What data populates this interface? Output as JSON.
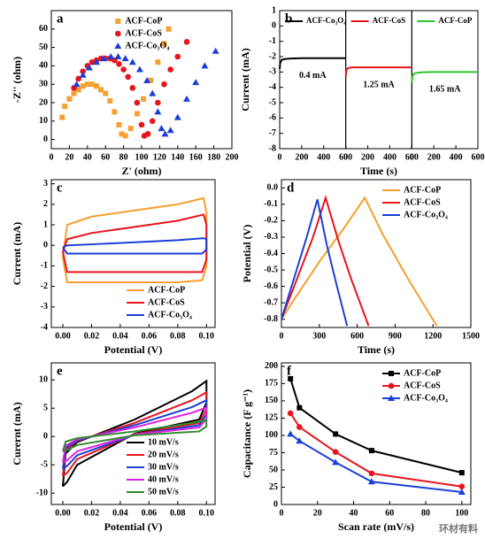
{
  "chart_data": [
    {
      "type": "scatter",
      "label": "a",
      "xlabel": "Z' (ohm)",
      "ylabel": "-Z'' (ohm)",
      "xlim": [
        0,
        200
      ],
      "ylim": [
        -5,
        70
      ],
      "xticks": [
        0,
        20,
        40,
        60,
        80,
        100,
        120,
        140,
        160,
        180,
        200
      ],
      "yticks": [
        0,
        10,
        20,
        30,
        40,
        50,
        60
      ],
      "legend": "upper center",
      "series": [
        {
          "name": "ACF-CoP",
          "color": "#f5a030",
          "marker": "square",
          "x": [
            12,
            15,
            20,
            25,
            30,
            35,
            40,
            45,
            50,
            55,
            60,
            65,
            70,
            75,
            78,
            82,
            88,
            95,
            102,
            110,
            118,
            125,
            130
          ],
          "values": [
            12,
            18,
            22,
            25,
            27,
            29,
            30,
            30,
            29,
            27,
            25,
            21,
            15,
            8,
            3,
            2,
            6,
            14,
            22,
            32,
            42,
            52,
            60
          ]
        },
        {
          "name": "ACF-CoS",
          "color": "#e8141c",
          "marker": "circle",
          "x": [
            25,
            30,
            35,
            40,
            45,
            50,
            55,
            60,
            65,
            70,
            75,
            80,
            85,
            90,
            95,
            100,
            103,
            107,
            112,
            118,
            125,
            132,
            140,
            150
          ],
          "values": [
            28,
            33,
            37,
            40,
            42,
            43,
            44,
            44,
            44,
            43,
            41,
            38,
            34,
            28,
            20,
            8,
            2,
            3,
            10,
            20,
            30,
            38,
            45,
            53
          ]
        },
        {
          "name": "ACF-Co₃O₄",
          "color": "#1a3fd8",
          "marker": "triangle",
          "x": [
            28,
            35,
            42,
            50,
            58,
            66,
            74,
            82,
            90,
            98,
            106,
            112,
            118,
            122,
            126,
            132,
            140,
            150,
            160,
            170,
            182
          ],
          "values": [
            30,
            35,
            39,
            42,
            44,
            45,
            45,
            44,
            42,
            38,
            32,
            25,
            15,
            6,
            3,
            5,
            12,
            22,
            31,
            40,
            48
          ]
        }
      ]
    },
    {
      "type": "line",
      "label": "b",
      "split_x": true,
      "xlabel": "Time (s)",
      "ylabel": "Current  (mA)",
      "xlim": [
        0,
        600
      ],
      "ylim": [
        -8,
        1
      ],
      "xticks": [
        0,
        200,
        400,
        600
      ],
      "yticks": [
        1,
        0,
        -1,
        -2,
        -3,
        -4,
        -5,
        -6,
        -7,
        -8
      ],
      "legend": "top",
      "series": [
        {
          "name": "ACF-Co₃O₄",
          "color": "#000000",
          "annotation": "0.4 mA",
          "x": [
            0,
            5,
            20,
            50,
            100,
            200,
            300,
            400,
            500,
            600
          ],
          "values": [
            -2.8,
            -2.4,
            -2.2,
            -2.15,
            -2.12,
            -2.1,
            -2.1,
            -2.1,
            -2.1,
            -2.1
          ]
        },
        {
          "name": "ACF-CoS",
          "color": "#e8141c",
          "annotation": "1.25 mA",
          "x": [
            0,
            5,
            20,
            50,
            100,
            200,
            300,
            400,
            500,
            600
          ],
          "values": [
            -3.3,
            -2.9,
            -2.75,
            -2.7,
            -2.7,
            -2.7,
            -2.7,
            -2.7,
            -2.7,
            -2.7
          ]
        },
        {
          "name": "ACF-CoP",
          "color": "#2ec42e",
          "annotation": "1.65 mA",
          "x": [
            0,
            5,
            20,
            50,
            100,
            200,
            300,
            400,
            500,
            600
          ],
          "values": [
            -3.7,
            -3.3,
            -3.1,
            -3.05,
            -3.02,
            -3.0,
            -3.0,
            -3.0,
            -3.0,
            -3.0
          ]
        }
      ]
    },
    {
      "type": "line",
      "label": "c",
      "xlabel": "Potential (V)",
      "ylabel": "Current (mA)",
      "xlim": [
        -0.008,
        0.106
      ],
      "ylim": [
        -4,
        3.2
      ],
      "xticks": [
        {
          "value": 0,
          "label": "0.00"
        },
        0.02,
        0.04,
        0.06,
        0.08,
        {
          "value": 0.1,
          "label": "0.10"
        }
      ],
      "yticks": [
        -4,
        -3,
        -2,
        -1,
        0,
        1,
        2,
        3
      ],
      "legend": "lower right",
      "series": [
        {
          "name": "ACF-CoP",
          "color": "#f5a030",
          "x": [
            0,
            0.003,
            0.02,
            0.05,
            0.08,
            0.098,
            0.1,
            0.1,
            0.097,
            0.08,
            0.05,
            0.02,
            0.003,
            0
          ],
          "values": [
            -0.6,
            1.0,
            1.4,
            1.7,
            2.0,
            2.3,
            1.6,
            -1.0,
            -1.7,
            -1.8,
            -1.8,
            -1.8,
            -1.8,
            -0.6
          ]
        },
        {
          "name": "ACF-CoS",
          "color": "#e8141c",
          "x": [
            0,
            0.003,
            0.02,
            0.05,
            0.08,
            0.098,
            0.1,
            0.1,
            0.097,
            0.08,
            0.05,
            0.02,
            0.003,
            0
          ],
          "values": [
            -0.3,
            0.3,
            0.6,
            0.9,
            1.2,
            1.5,
            1.0,
            -0.7,
            -1.3,
            -1.3,
            -1.3,
            -1.3,
            -1.3,
            -0.3
          ]
        },
        {
          "name": "ACF-Co₃O₄",
          "color": "#1a3fd8",
          "x": [
            0,
            0.003,
            0.02,
            0.05,
            0.08,
            0.098,
            0.1,
            0.1,
            0.097,
            0.08,
            0.05,
            0.02,
            0.003,
            0
          ],
          "values": [
            -0.1,
            0.0,
            0.05,
            0.15,
            0.25,
            0.35,
            0.3,
            -0.2,
            -0.4,
            -0.4,
            -0.4,
            -0.4,
            -0.4,
            -0.1
          ]
        }
      ]
    },
    {
      "type": "line",
      "label": "d",
      "xlabel": "Time (s)",
      "ylabel": "Potential (V)",
      "xlim": [
        0,
        1500
      ],
      "ylim": [
        -0.85,
        0.05
      ],
      "xticks": [
        0,
        300,
        600,
        900,
        1200,
        1500
      ],
      "yticks": [
        {
          "value": 0,
          "label": "0.0"
        },
        -0.1,
        -0.2,
        -0.3,
        -0.4,
        -0.5,
        -0.6,
        -0.7,
        -0.8
      ],
      "legend": "upper right",
      "series": [
        {
          "name": "ACF-CoP",
          "color": "#f5a030",
          "x": [
            0,
            100,
            300,
            500,
            660,
            800,
            1000,
            1230
          ],
          "values": [
            -0.8,
            -0.68,
            -0.45,
            -0.24,
            -0.06,
            -0.28,
            -0.55,
            -0.84
          ]
        },
        {
          "name": "ACF-CoS",
          "color": "#e8141c",
          "x": [
            0,
            100,
            250,
            350,
            450,
            550,
            690
          ],
          "values": [
            -0.8,
            -0.6,
            -0.3,
            -0.06,
            -0.32,
            -0.55,
            -0.84
          ]
        },
        {
          "name": "ACF-Co₃O₄",
          "color": "#1a3fd8",
          "x": [
            0,
            80,
            200,
            285,
            360,
            440,
            520
          ],
          "values": [
            -0.8,
            -0.6,
            -0.3,
            -0.07,
            -0.35,
            -0.6,
            -0.84
          ]
        }
      ]
    },
    {
      "type": "line",
      "label": "e",
      "xlabel": "Potential (V)",
      "ylabel": "Curernt (mA)",
      "xlim": [
        -0.008,
        0.106
      ],
      "ylim": [
        -12,
        13
      ],
      "xticks": [
        {
          "value": 0,
          "label": "0.00"
        },
        0.02,
        0.04,
        0.06,
        0.08,
        {
          "value": 0.1,
          "label": "0.10"
        }
      ],
      "yticks": [
        -10,
        -5,
        0,
        5,
        10
      ],
      "legend": "lower right",
      "x": [
        0,
        0.002,
        0.01,
        0.05,
        0.09,
        0.1,
        0.1,
        0.095,
        0.05,
        0.01,
        0.003,
        0
      ],
      "series": [
        {
          "name": "10 mV/s",
          "color": "#000000",
          "values": [
            -8.8,
            -3,
            -1,
            3,
            8,
            9.8,
            6,
            3,
            0.5,
            -5,
            -8,
            -8.8
          ]
        },
        {
          "name": "20 mV/s",
          "color": "#e8141c",
          "values": [
            -7.0,
            -2.4,
            -0.8,
            2.4,
            6.4,
            7.8,
            4.8,
            2.4,
            0.4,
            -4.0,
            -6.4,
            -7.0
          ]
        },
        {
          "name": "30 mV/s",
          "color": "#1a3fd8",
          "values": [
            -5.7,
            -2.0,
            -0.7,
            2.0,
            5.2,
            6.4,
            3.9,
            2.0,
            0.3,
            -3.3,
            -5.2,
            -5.7
          ]
        },
        {
          "name": "40 mV/s",
          "color": "#e020e0",
          "values": [
            -4.6,
            -1.6,
            -0.5,
            1.6,
            4.2,
            5.1,
            3.1,
            1.6,
            0.3,
            -2.6,
            -4.2,
            -4.6
          ]
        },
        {
          "name": "50 mV/s",
          "color": "#2e8b2e",
          "values": [
            -2.6,
            -0.9,
            -0.3,
            0.9,
            2.4,
            2.9,
            1.8,
            0.9,
            0.2,
            -1.5,
            -2.4,
            -2.6
          ]
        }
      ]
    },
    {
      "type": "line",
      "label": "f",
      "xlabel": "Scan rate (mV/s)",
      "ylabel": "Capacitance (F g⁻¹)",
      "xlim": [
        0,
        105
      ],
      "ylim": [
        0,
        205
      ],
      "xticks": [
        0,
        20,
        40,
        60,
        80,
        100
      ],
      "yticks": [
        0,
        25,
        50,
        75,
        100,
        125,
        150,
        175,
        200
      ],
      "legend": "upper right",
      "x": [
        5,
        10,
        30,
        50,
        100
      ],
      "series": [
        {
          "name": "ACF-CoP",
          "color": "#000000",
          "marker": "square",
          "values": [
            182,
            140,
            102,
            78,
            46
          ]
        },
        {
          "name": "ACF-CoS",
          "color": "#e8141c",
          "marker": "circle",
          "values": [
            132,
            112,
            76,
            45,
            26
          ]
        },
        {
          "name": "ACF-Co₃O₄",
          "color": "#1a3fd8",
          "marker": "triangle",
          "values": [
            102,
            92,
            61,
            33,
            18
          ]
        }
      ]
    }
  ],
  "watermark": "环材有料"
}
